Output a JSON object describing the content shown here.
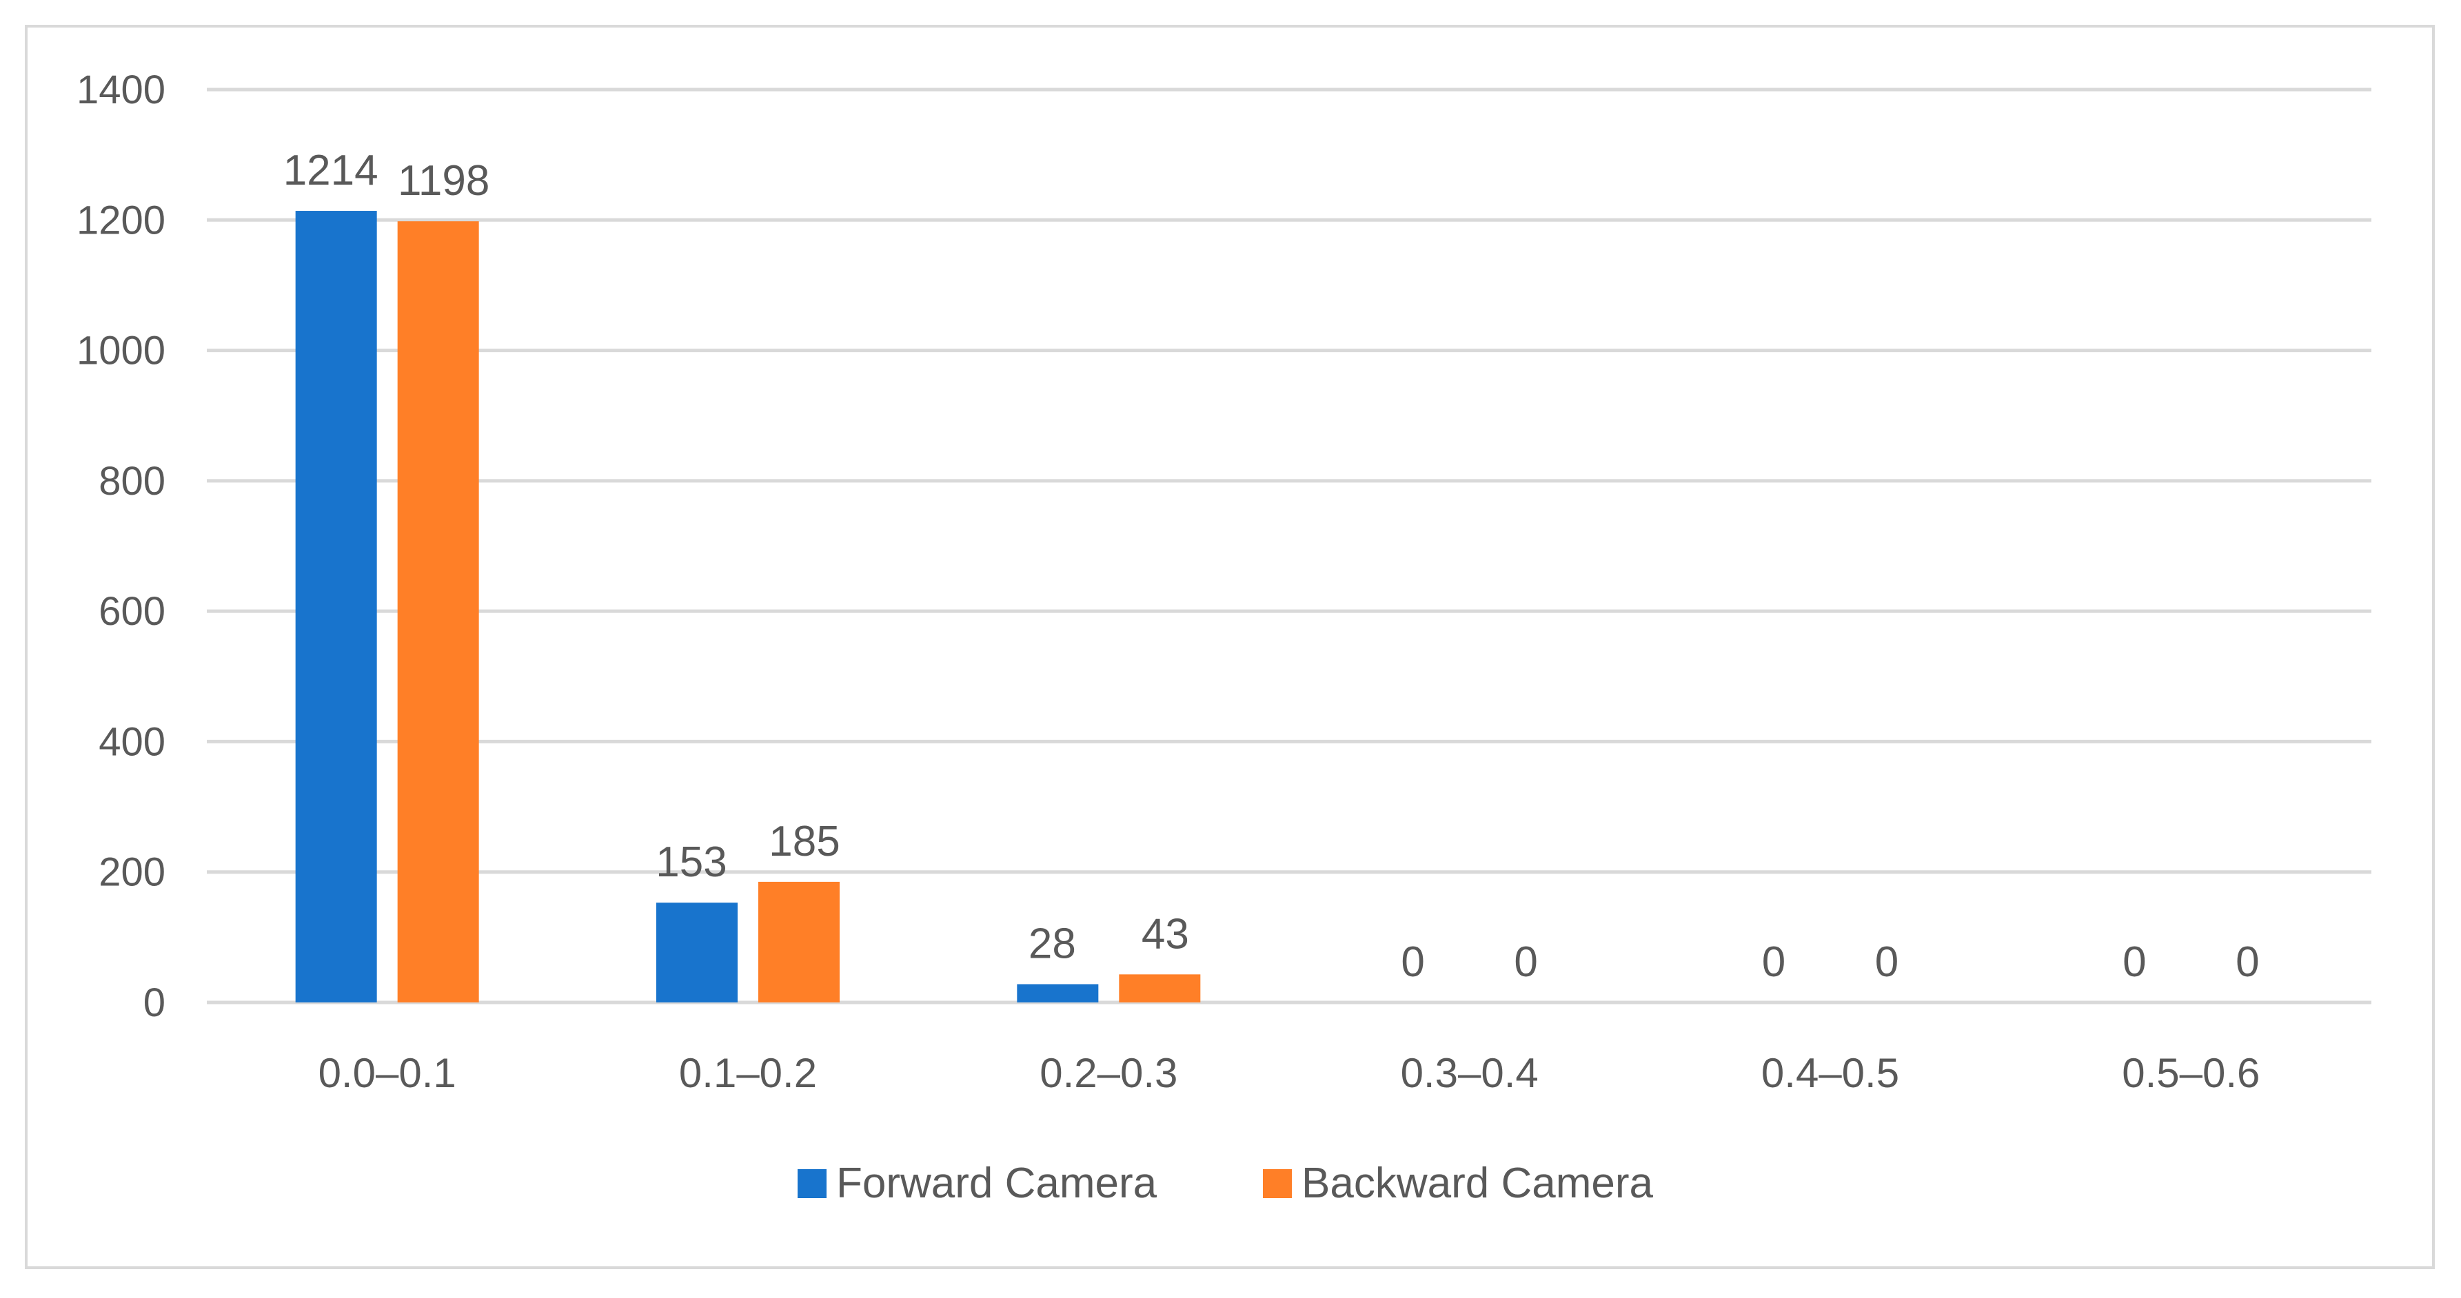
{
  "chart_data": {
    "type": "bar",
    "title": "",
    "xlabel": "",
    "ylabel": "",
    "categories": [
      "0.0–0.1",
      "0.1–0.2",
      "0.2–0.3",
      "0.3–0.4",
      "0.4–0.5",
      "0.5–0.6"
    ],
    "series": [
      {
        "name": "Forward Camera",
        "color": "#1874cd",
        "values": [
          1214,
          153,
          28,
          0,
          0,
          0
        ]
      },
      {
        "name": "Backward Camera",
        "color": "#ff7f27",
        "values": [
          1198,
          185,
          43,
          0,
          0,
          0
        ]
      }
    ],
    "ylim": [
      0,
      1400
    ],
    "yticks": [
      0,
      200,
      400,
      600,
      800,
      1000,
      1200,
      1400
    ],
    "grid": true,
    "data_labels": true,
    "legend_position": "bottom",
    "colors": {
      "grid": "#d9d9d9",
      "text": "#595959",
      "frame": "#d9d9d9"
    }
  }
}
